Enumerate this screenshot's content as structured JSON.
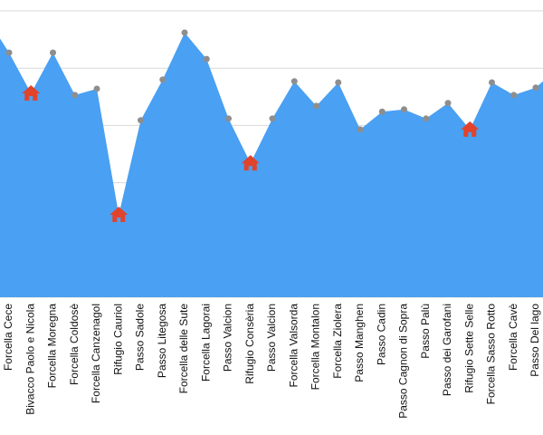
{
  "chart_data": {
    "type": "area",
    "categories": [
      null,
      "Forcella Cece",
      "Bivacco Paolo e Nicola",
      "Forcella Moregna",
      "Forcella Coldosè",
      "Forcella Canzenagol",
      "Rifugio Cauriol",
      "Passo Sadole",
      "Passo Litegosa",
      "Forcella delle Sute",
      "Forcella Lagorai",
      "Passo Valcion",
      "Rifugio Consèria",
      "Passo Valcion",
      "Forcella Valsorda",
      "Forcella Montalon",
      "Forcella Ziolera",
      "Passo Manghen",
      "Passo Cadin",
      "Passo Cagnon di Sopra",
      "Passo Palù",
      "Passo dei Garofani",
      "Rifugio Sette Selle",
      "Forcella Sasso Rotto",
      "Forcella Cavè",
      "Passo Del lago",
      null
    ],
    "values": [
      487,
      427,
      356,
      427,
      353,
      364,
      144,
      309,
      380,
      462,
      416,
      312,
      234,
      312,
      377,
      334,
      375,
      293,
      324,
      328,
      312,
      339,
      293,
      375,
      353,
      366,
      400
    ],
    "hut": [
      false,
      false,
      true,
      false,
      false,
      false,
      true,
      false,
      false,
      false,
      false,
      false,
      true,
      false,
      false,
      false,
      false,
      false,
      false,
      false,
      false,
      false,
      true,
      false,
      false,
      false,
      false
    ],
    "color": "#4aa0f2",
    "point_color": "#8e8e8e",
    "hut_color": "#e2432b",
    "ylim": [
      0,
      500
    ],
    "yticks": [
      0,
      100,
      200,
      300,
      400,
      500
    ],
    "grid": true
  }
}
